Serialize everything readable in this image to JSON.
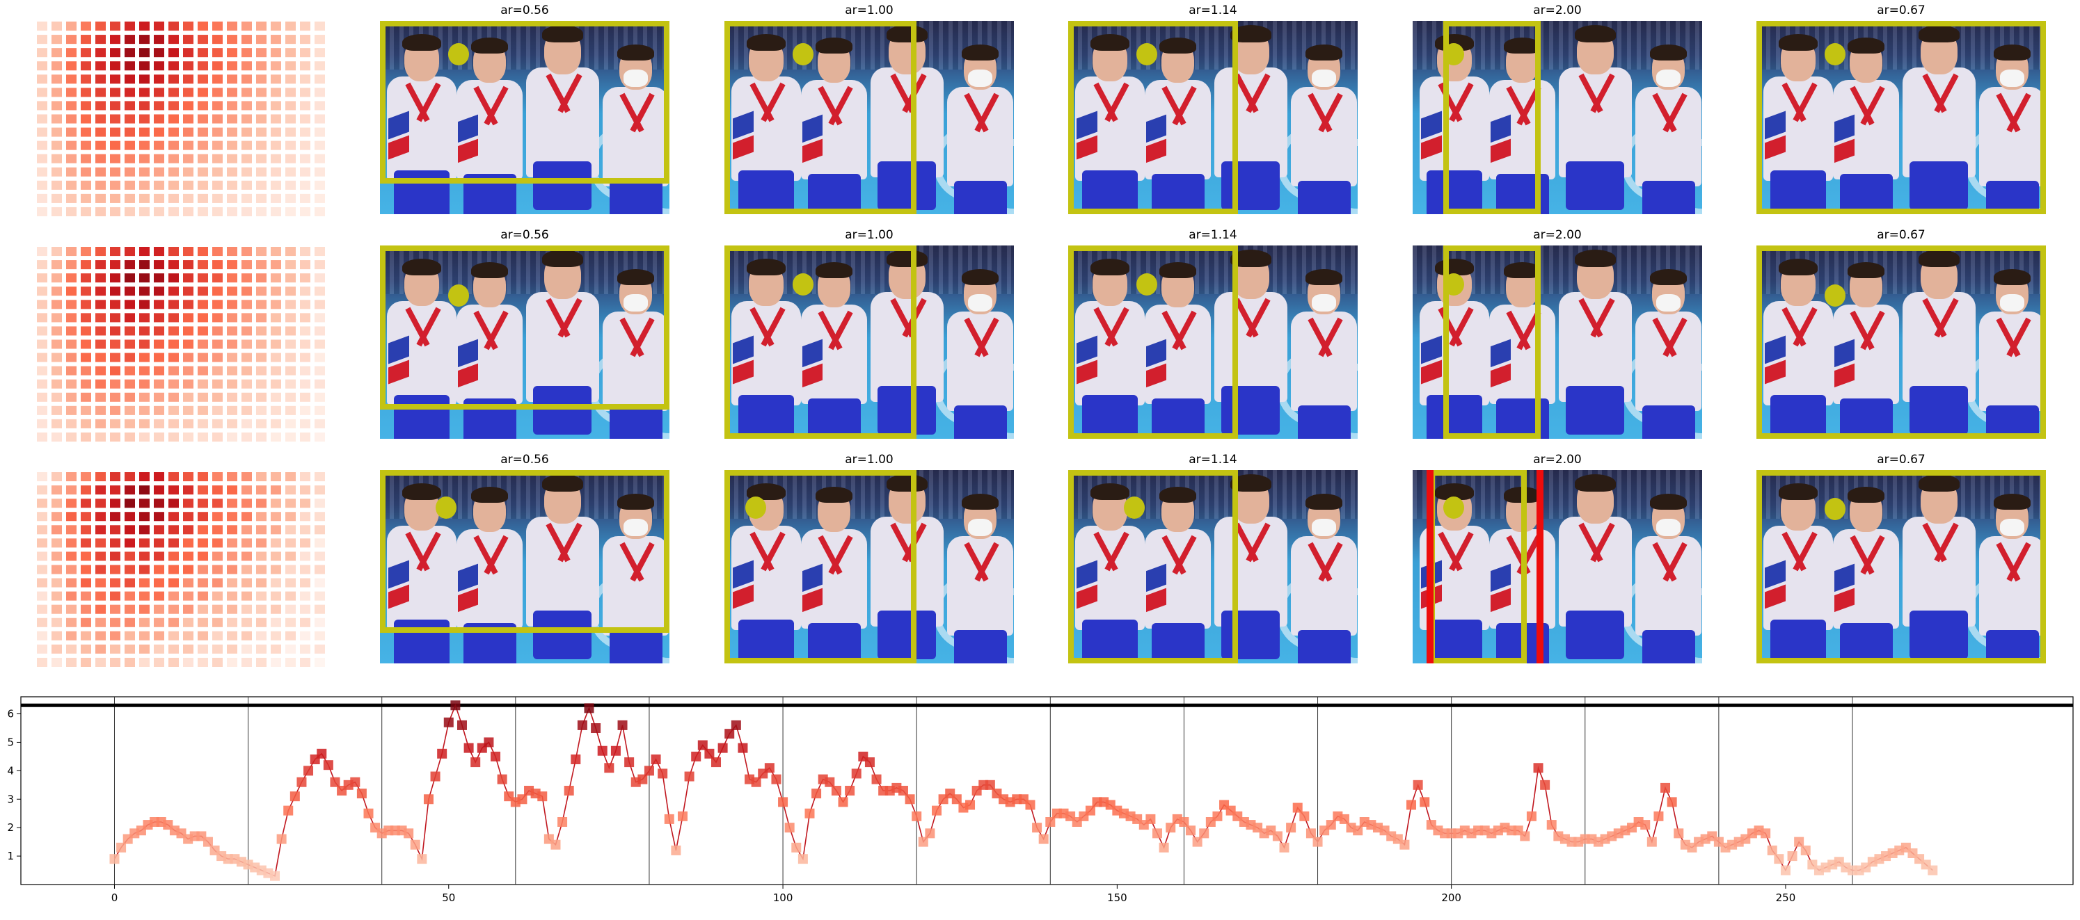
{
  "panel_titles": [
    "ar=0.56",
    "ar=1.00",
    "ar=1.14",
    "ar=2.00",
    "ar=0.67"
  ],
  "heatmap_values": [
    [
      0.1,
      0.18,
      0.3,
      0.45,
      0.55,
      0.62,
      0.7,
      0.74,
      0.7,
      0.64,
      0.56,
      0.5,
      0.46,
      0.4,
      0.34,
      0.3,
      0.26,
      0.22,
      0.16,
      0.1
    ],
    [
      0.14,
      0.26,
      0.4,
      0.55,
      0.66,
      0.74,
      0.82,
      0.86,
      0.8,
      0.72,
      0.64,
      0.58,
      0.52,
      0.46,
      0.4,
      0.34,
      0.3,
      0.24,
      0.18,
      0.1
    ],
    [
      0.16,
      0.3,
      0.46,
      0.6,
      0.7,
      0.78,
      0.86,
      0.9,
      0.84,
      0.76,
      0.68,
      0.6,
      0.54,
      0.48,
      0.42,
      0.36,
      0.3,
      0.24,
      0.18,
      0.1
    ],
    [
      0.18,
      0.32,
      0.48,
      0.62,
      0.7,
      0.76,
      0.82,
      0.84,
      0.78,
      0.72,
      0.64,
      0.58,
      0.52,
      0.46,
      0.4,
      0.34,
      0.28,
      0.22,
      0.16,
      0.1
    ],
    [
      0.18,
      0.32,
      0.46,
      0.58,
      0.66,
      0.72,
      0.76,
      0.78,
      0.72,
      0.66,
      0.6,
      0.54,
      0.48,
      0.42,
      0.38,
      0.32,
      0.26,
      0.2,
      0.14,
      0.1
    ],
    [
      0.16,
      0.3,
      0.44,
      0.56,
      0.62,
      0.66,
      0.7,
      0.7,
      0.66,
      0.6,
      0.54,
      0.5,
      0.44,
      0.4,
      0.34,
      0.3,
      0.24,
      0.18,
      0.14,
      0.08
    ],
    [
      0.16,
      0.3,
      0.42,
      0.54,
      0.6,
      0.62,
      0.64,
      0.64,
      0.6,
      0.56,
      0.5,
      0.46,
      0.42,
      0.36,
      0.32,
      0.28,
      0.22,
      0.18,
      0.12,
      0.08
    ],
    [
      0.14,
      0.28,
      0.4,
      0.5,
      0.56,
      0.58,
      0.58,
      0.58,
      0.54,
      0.5,
      0.46,
      0.42,
      0.38,
      0.34,
      0.3,
      0.26,
      0.2,
      0.16,
      0.12,
      0.08
    ],
    [
      0.14,
      0.26,
      0.38,
      0.48,
      0.52,
      0.54,
      0.54,
      0.52,
      0.5,
      0.46,
      0.42,
      0.38,
      0.34,
      0.3,
      0.26,
      0.22,
      0.18,
      0.14,
      0.1,
      0.06
    ],
    [
      0.12,
      0.24,
      0.36,
      0.44,
      0.48,
      0.5,
      0.48,
      0.46,
      0.44,
      0.4,
      0.36,
      0.34,
      0.3,
      0.26,
      0.22,
      0.2,
      0.16,
      0.12,
      0.1,
      0.06
    ],
    [
      0.12,
      0.22,
      0.32,
      0.4,
      0.44,
      0.44,
      0.42,
      0.4,
      0.38,
      0.34,
      0.32,
      0.28,
      0.26,
      0.22,
      0.2,
      0.16,
      0.14,
      0.12,
      0.08,
      0.06
    ],
    [
      0.1,
      0.2,
      0.3,
      0.36,
      0.38,
      0.38,
      0.36,
      0.34,
      0.32,
      0.3,
      0.26,
      0.24,
      0.22,
      0.2,
      0.16,
      0.14,
      0.12,
      0.1,
      0.08,
      0.06
    ],
    [
      0.1,
      0.18,
      0.26,
      0.3,
      0.32,
      0.32,
      0.3,
      0.28,
      0.26,
      0.24,
      0.22,
      0.2,
      0.18,
      0.16,
      0.14,
      0.12,
      0.1,
      0.08,
      0.06,
      0.04
    ],
    [
      0.08,
      0.14,
      0.2,
      0.24,
      0.26,
      0.26,
      0.24,
      0.22,
      0.2,
      0.18,
      0.16,
      0.16,
      0.14,
      0.12,
      0.1,
      0.1,
      0.08,
      0.06,
      0.06,
      0.04
    ],
    [
      0.06,
      0.1,
      0.14,
      0.16,
      0.18,
      0.18,
      0.16,
      0.14,
      0.14,
      0.12,
      0.12,
      0.1,
      0.1,
      0.08,
      0.08,
      0.06,
      0.06,
      0.04,
      0.04,
      0.04
    ]
  ],
  "chart_data": {
    "type": "line",
    "xlim": [
      -14,
      293
    ],
    "ylim": [
      0,
      6.6
    ],
    "xticks": [
      0,
      50,
      100,
      150,
      200,
      250
    ],
    "yticks": [
      1,
      2,
      3,
      4,
      5,
      6
    ],
    "threshold": 6.3,
    "segment_boundaries": [
      20,
      40,
      60,
      80,
      100,
      120,
      140,
      160,
      180,
      200,
      220,
      240,
      260
    ],
    "x_start": 0,
    "values": [
      0.9,
      1.3,
      1.6,
      1.8,
      1.9,
      2.1,
      2.2,
      2.2,
      2.1,
      1.9,
      1.8,
      1.6,
      1.7,
      1.7,
      1.5,
      1.2,
      1.0,
      0.9,
      0.9,
      0.8,
      0.7,
      0.6,
      0.5,
      0.4,
      0.3,
      1.6,
      2.6,
      3.1,
      3.6,
      4.0,
      4.4,
      4.6,
      4.2,
      3.6,
      3.3,
      3.5,
      3.6,
      3.2,
      2.5,
      2.0,
      1.8,
      1.9,
      1.9,
      1.9,
      1.8,
      1.4,
      0.9,
      3.0,
      3.8,
      4.6,
      5.7,
      6.3,
      5.6,
      4.8,
      4.3,
      4.8,
      5.0,
      4.5,
      3.7,
      3.1,
      2.9,
      3.0,
      3.3,
      3.2,
      3.1,
      1.6,
      1.4,
      2.2,
      3.3,
      4.4,
      5.6,
      6.2,
      5.5,
      4.7,
      4.1,
      4.7,
      5.6,
      4.3,
      3.6,
      3.7,
      4.0,
      4.4,
      3.9,
      2.3,
      1.2,
      2.4,
      3.8,
      4.5,
      4.9,
      4.6,
      4.3,
      4.8,
      5.3,
      5.6,
      4.8,
      3.7,
      3.6,
      3.9,
      4.1,
      3.7,
      2.9,
      2.0,
      1.3,
      0.9,
      2.5,
      3.2,
      3.7,
      3.6,
      3.3,
      2.9,
      3.3,
      3.9,
      4.5,
      4.3,
      3.7,
      3.3,
      3.3,
      3.4,
      3.3,
      3.0,
      2.4,
      1.5,
      1.8,
      2.6,
      3.0,
      3.2,
      3.0,
      2.7,
      2.8,
      3.3,
      3.5,
      3.5,
      3.2,
      3.0,
      2.9,
      3.0,
      3.0,
      2.8,
      2.0,
      1.6,
      2.2,
      2.5,
      2.5,
      2.4,
      2.2,
      2.4,
      2.6,
      2.9,
      2.9,
      2.8,
      2.6,
      2.5,
      2.4,
      2.3,
      2.1,
      2.3,
      1.8,
      1.3,
      2.0,
      2.3,
      2.2,
      1.9,
      1.5,
      1.8,
      2.2,
      2.4,
      2.8,
      2.6,
      2.4,
      2.2,
      2.1,
      2.0,
      1.8,
      1.9,
      1.7,
      1.3,
      2.0,
      2.7,
      2.4,
      1.8,
      1.5,
      1.9,
      2.1,
      2.4,
      2.3,
      2.0,
      1.9,
      2.2,
      2.1,
      2.0,
      1.9,
      1.7,
      1.6,
      1.4,
      2.8,
      3.5,
      2.9,
      2.1,
      1.9,
      1.8,
      1.8,
      1.8,
      1.9,
      1.8,
      1.9,
      1.9,
      1.8,
      1.9,
      2.0,
      1.9,
      1.9,
      1.7,
      2.4,
      4.1,
      3.5,
      2.1,
      1.7,
      1.6,
      1.5,
      1.5,
      1.6,
      1.6,
      1.5,
      1.6,
      1.7,
      1.8,
      1.9,
      2.0,
      2.2,
      2.1,
      1.5,
      2.4,
      3.4,
      2.9,
      1.8,
      1.4,
      1.3,
      1.5,
      1.6,
      1.7,
      1.5,
      1.3,
      1.4,
      1.5,
      1.6,
      1.8,
      1.9,
      1.8,
      1.2,
      0.9,
      0.5,
      1.0,
      1.5,
      1.2,
      0.7,
      0.5,
      0.6,
      0.7,
      0.8,
      0.6,
      0.5,
      0.5,
      0.6,
      0.8,
      0.9,
      1.0,
      1.1,
      1.2,
      1.3,
      1.1,
      0.9,
      0.7,
      0.5
    ]
  }
}
